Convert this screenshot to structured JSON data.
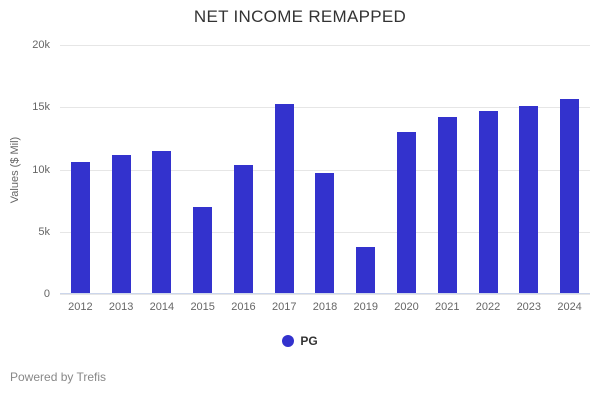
{
  "title": "NET INCOME REMAPPED",
  "footer": {
    "text": "Powered by Trefis"
  },
  "legend": {
    "items": [
      {
        "label": "PG",
        "color": "#3332cd"
      }
    ]
  },
  "colors": {
    "bar": "#3332cd",
    "gridline": "#e6e6e6",
    "x_axis_line": "#ccd6eb",
    "title_text": "#333333",
    "tick_text": "#666666",
    "footer_text": "#888888"
  },
  "chart_data": {
    "type": "bar",
    "title": "NET INCOME REMAPPED",
    "categories": [
      "2012",
      "2013",
      "2014",
      "2015",
      "2016",
      "2017",
      "2018",
      "2019",
      "2020",
      "2021",
      "2022",
      "2023",
      "2024"
    ],
    "series": [
      {
        "name": "PG",
        "values": [
          10600,
          11200,
          11500,
          7000,
          10400,
          15300,
          9700,
          3800,
          13000,
          14200,
          14700,
          15100,
          15700
        ]
      }
    ],
    "xlabel": "",
    "ylabel": "Values ($ Mil)",
    "ylim": [
      0,
      20000
    ],
    "yticks": [
      0,
      5000,
      10000,
      15000,
      20000
    ],
    "ytick_labels": [
      "0",
      "5k",
      "10k",
      "15k",
      "20k"
    ],
    "grid": true,
    "legend_position": "bottom"
  }
}
